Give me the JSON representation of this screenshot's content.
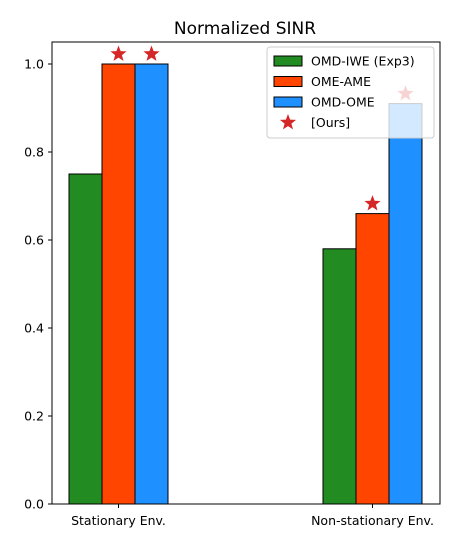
{
  "chart_data": {
    "type": "bar",
    "title": "Normalized SINR",
    "xlabel": "",
    "ylabel": "",
    "categories": [
      "Stationary Env.",
      "Non-stationary Env."
    ],
    "ylim": [
      0,
      1.05
    ],
    "yticks": [
      "0.0",
      "0.2",
      "0.4",
      "0.6",
      "0.8",
      "1.0"
    ],
    "grid": false,
    "legend_position": "top-right",
    "series": [
      {
        "name": "OMD-IWE (Exp3)",
        "color": "#228B22",
        "values": [
          0.75,
          0.58
        ]
      },
      {
        "name": "OME-AME",
        "color": "#FF4500",
        "values": [
          1.0,
          0.66
        ]
      },
      {
        "name": "OMD-OME",
        "color": "#1E90FF",
        "values": [
          1.0,
          0.91
        ]
      }
    ],
    "marker_legend": {
      "name": "[Ours]",
      "color": "#D62728",
      "symbol": "star"
    },
    "markers": [
      {
        "category": "Stationary Env.",
        "series": "OME-AME",
        "y": 1.0
      },
      {
        "category": "Stationary Env.",
        "series": "OMD-OME",
        "y": 1.0
      },
      {
        "category": "Non-stationary Env.",
        "series": "OME-AME",
        "y": 0.66
      },
      {
        "category": "Non-stationary Env.",
        "series": "OMD-OME",
        "y": 0.91
      }
    ]
  }
}
